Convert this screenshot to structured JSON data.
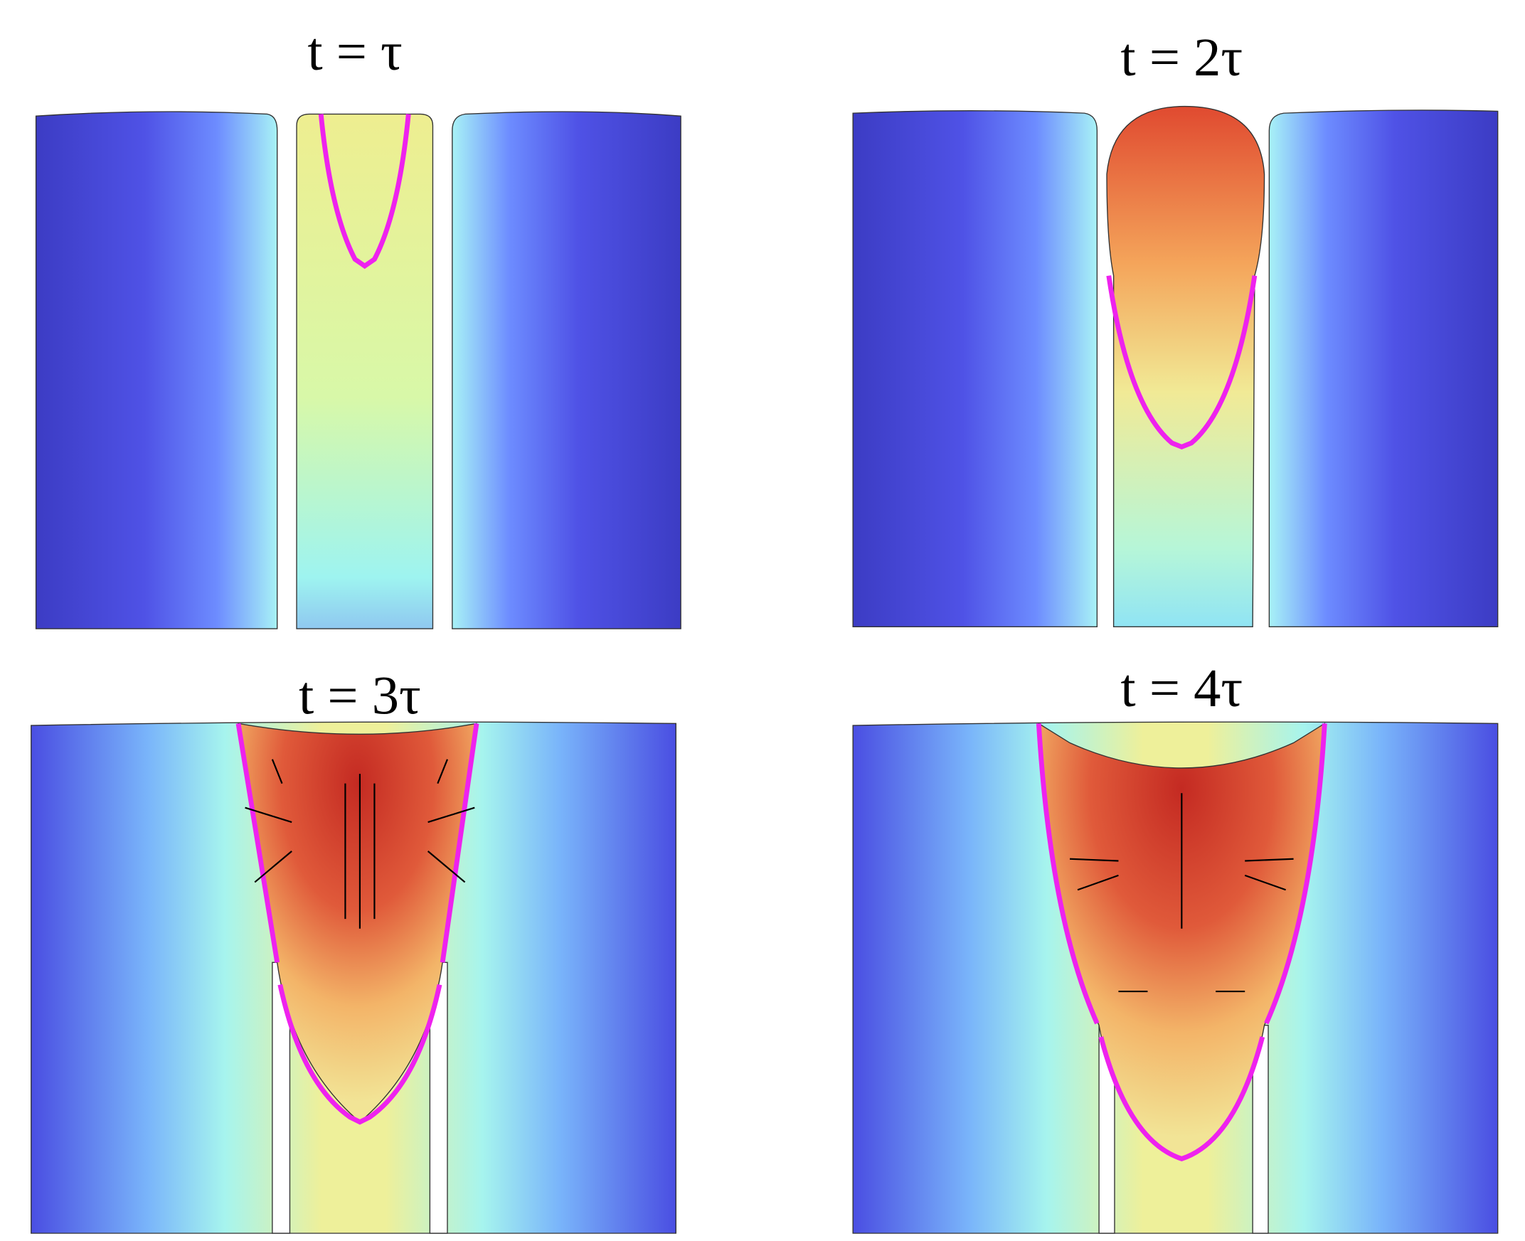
{
  "panels": [
    {
      "title": "t = τ"
    },
    {
      "title": "t = 2τ"
    },
    {
      "title": "t = 3τ"
    },
    {
      "title": "t = 4τ"
    }
  ]
}
